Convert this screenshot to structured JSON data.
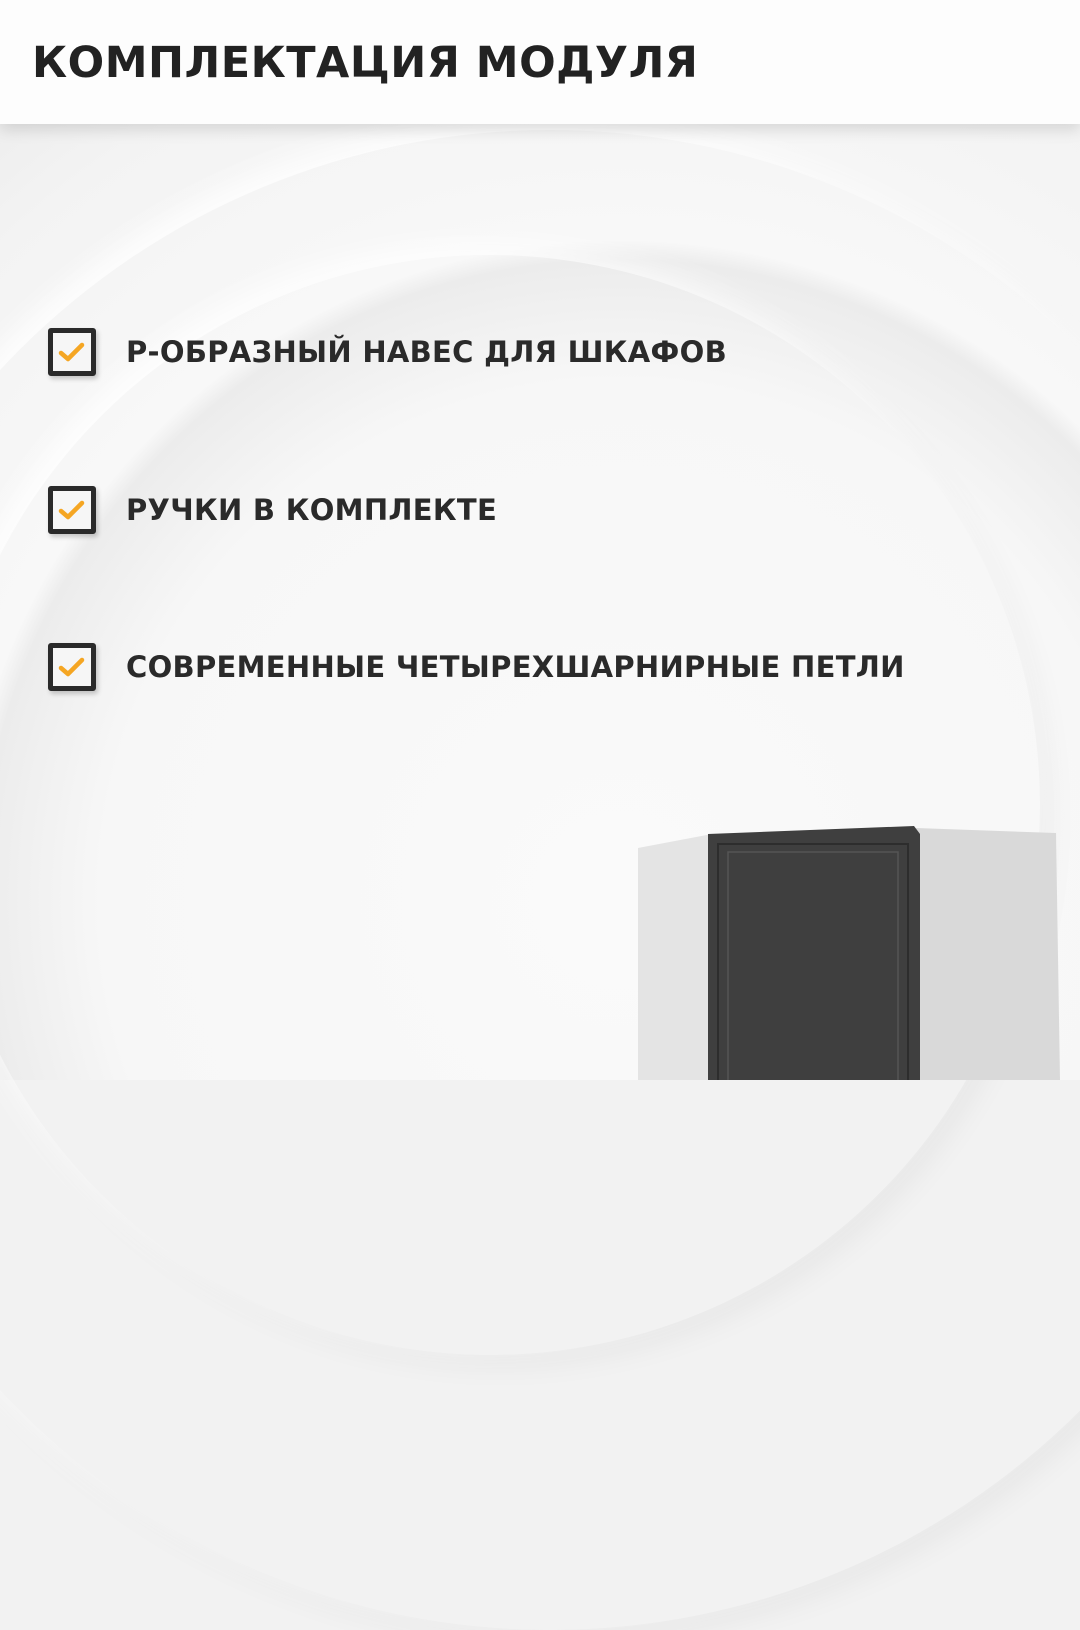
{
  "header": {
    "title": "КОМПЛЕКТАЦИЯ МОДУЛЯ"
  },
  "features": [
    {
      "label": "Р-ОБРАЗНЫЙ НАВЕС ДЛЯ ШКАФОВ",
      "icon": "checkbox-checked-icon"
    },
    {
      "label": "РУЧКИ В КОМПЛЕКТЕ",
      "icon": "checkbox-checked-icon"
    },
    {
      "label": "СОВРЕМЕННЫЕ ЧЕТЫРЕХШАРНИРНЫЕ ПЕТЛИ",
      "icon": "checkbox-checked-icon"
    }
  ],
  "colors": {
    "check": "#f5a623",
    "text": "#2a2a2a",
    "door": "#3f3f3f"
  }
}
